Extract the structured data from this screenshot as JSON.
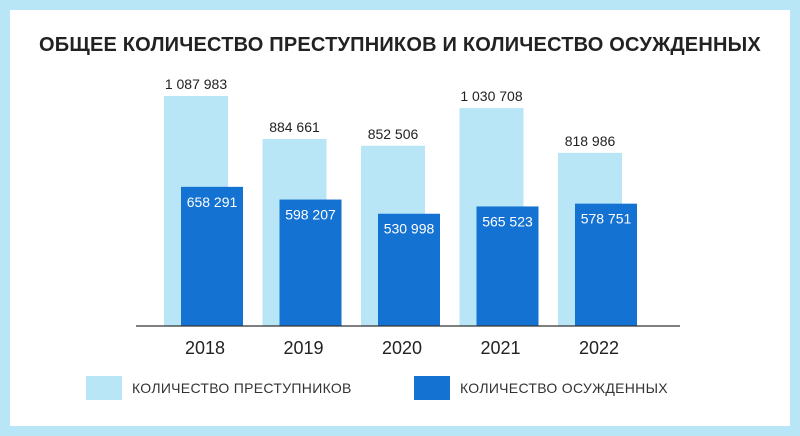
{
  "chart_data": {
    "type": "bar",
    "title": "ОБЩЕЕ КОЛИЧЕСТВО ПРЕСТУПНИКОВ И КОЛИЧЕСТВО ОСУЖДЕННЫХ",
    "categories": [
      "2018",
      "2019",
      "2020",
      "2021",
      "2022"
    ],
    "series": [
      {
        "name": "КОЛИЧЕСТВО ПРЕСТУПНИКОВ",
        "values": [
          1087983,
          884661,
          852506,
          1030708,
          818986
        ],
        "labels": [
          "1 087 983",
          "884 661",
          "852 506",
          "1 030 708",
          "818 986"
        ],
        "color": "#b9e6f6"
      },
      {
        "name": "КОЛИЧЕСТВО ОСУЖДЕННЫХ",
        "values": [
          658291,
          598207,
          530998,
          565523,
          578751
        ],
        "labels": [
          "658 291",
          "598 207",
          "530 998",
          "565 523",
          "578 751"
        ],
        "color": "#1472d2"
      }
    ],
    "ylim": [
      0,
      1100000
    ],
    "grid": false,
    "legend_position": "bottom"
  }
}
